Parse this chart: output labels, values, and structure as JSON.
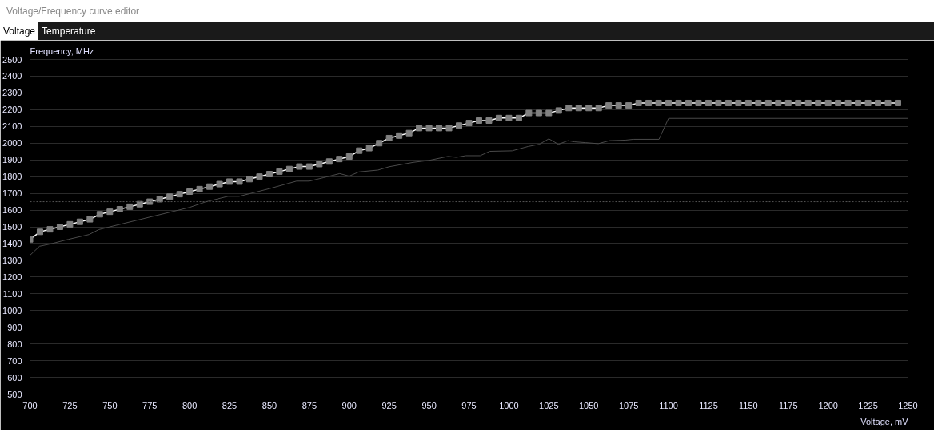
{
  "chart_data": {
    "type": "line",
    "title": "Voltage/Frequency curve editor",
    "annotations": [
      "Voltage",
      "Temperature"
    ],
    "xlabel": "Voltage, mV",
    "ylabel": "Frequency, MHz",
    "xlim": [
      700,
      1250
    ],
    "xticks": [
      700,
      725,
      750,
      775,
      800,
      825,
      850,
      875,
      900,
      925,
      950,
      975,
      1000,
      1025,
      1050,
      1075,
      1100,
      1125,
      1150,
      1175,
      1200,
      1225,
      1250
    ],
    "ylim": [
      500,
      2500
    ],
    "yticks": [
      500,
      600,
      700,
      800,
      900,
      1000,
      1100,
      1200,
      1300,
      1400,
      1500,
      1600,
      1700,
      1800,
      1900,
      2000,
      2100,
      2200,
      2300,
      2400,
      2500
    ],
    "grid": true,
    "ref_lines": [
      {
        "axis": "y",
        "value": 1650,
        "label": null,
        "color": "#555555",
        "line_style": "dotted"
      }
    ],
    "series": [
      {
        "color": "#808080",
        "marker": "square",
        "x": [
          700,
          706.25,
          712.5,
          718.75,
          725,
          731.25,
          737.5,
          743.75,
          750,
          756.25,
          762.5,
          768.75,
          775,
          781.25,
          787.5,
          793.75,
          800,
          806.25,
          812.5,
          818.75,
          825,
          831.25,
          837.5,
          843.75,
          850,
          856.25,
          862.5,
          868.75,
          875,
          881.25,
          887.5,
          893.75,
          900,
          906.25,
          912.5,
          918.75,
          925,
          931.25,
          937.5,
          943.75,
          950,
          956.25,
          962.5,
          968.75,
          975,
          981.25,
          987.5,
          993.75,
          1000,
          1006.25,
          1012.5,
          1018.75,
          1025,
          1031.25,
          1037.5,
          1043.75,
          1050,
          1056.25,
          1062.5,
          1068.75,
          1075,
          1081.25,
          1087.5,
          1093.75,
          1100,
          1106.25,
          1112.5,
          1118.75,
          1125,
          1131.25,
          1137.5,
          1143.75,
          1150,
          1156.25,
          1162.5,
          1168.75,
          1175,
          1181.25,
          1187.5,
          1193.75,
          1200,
          1206.25,
          1212.5,
          1218.75,
          1225,
          1231.25,
          1237.5,
          1243.75
        ],
        "values": [
          1425,
          1470,
          1485,
          1500,
          1515,
          1530,
          1545,
          1575,
          1590,
          1605,
          1620,
          1635,
          1650,
          1665,
          1680,
          1695,
          1710,
          1725,
          1740,
          1755,
          1770,
          1770,
          1785,
          1800,
          1815,
          1830,
          1845,
          1860,
          1860,
          1875,
          1890,
          1905,
          1920,
          1955,
          1970,
          2000,
          2030,
          2045,
          2060,
          2090,
          2090,
          2090,
          2090,
          2105,
          2120,
          2135,
          2135,
          2150,
          2150,
          2150,
          2180,
          2180,
          2180,
          2195,
          2210,
          2210,
          2210,
          2210,
          2225,
          2225,
          2225,
          2240,
          2240,
          2240,
          2240,
          2240,
          2240,
          2240,
          2240,
          2240,
          2240,
          2240,
          2240,
          2240,
          2240,
          2240,
          2240,
          2240,
          2240,
          2240,
          2240,
          2240,
          2240,
          2240,
          2240,
          2240,
          2240,
          2240
        ]
      },
      {
        "color": "#4a4a4a",
        "marker": "none",
        "x": [
          700,
          706,
          712,
          724,
          737,
          743,
          750,
          775,
          800,
          810,
          824,
          831,
          850,
          867,
          875,
          884,
          894,
          900,
          906,
          918,
          925,
          940,
          950,
          962,
          967,
          973,
          982,
          988,
          1002,
          1012,
          1019,
          1025,
          1031,
          1037,
          1041,
          1048,
          1056,
          1063,
          1073,
          1078,
          1094,
          1100,
          1250
        ],
        "values": [
          1330,
          1384,
          1396,
          1425,
          1454,
          1483,
          1500,
          1558,
          1616,
          1649,
          1682,
          1682,
          1728,
          1773,
          1773,
          1794,
          1818,
          1803,
          1828,
          1839,
          1859,
          1885,
          1897,
          1921,
          1915,
          1925,
          1925,
          1951,
          1954,
          1980,
          1993,
          2026,
          1993,
          2015,
          2008,
          2003,
          1997,
          2015,
          2018,
          2023,
          2023,
          2148,
          2148
        ]
      }
    ]
  }
}
